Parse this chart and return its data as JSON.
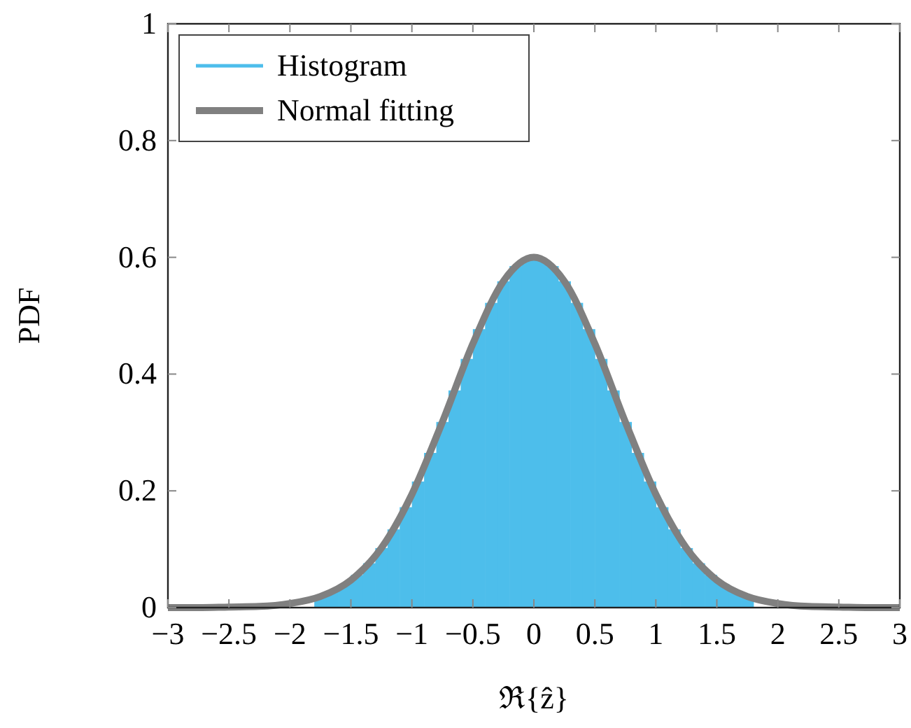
{
  "chart_data": {
    "type": "histogram",
    "xlabel": "ℜ{ẑ}",
    "ylabel": "PDF",
    "xlim": [
      -3,
      3
    ],
    "ylim": [
      0,
      1
    ],
    "xticks": [
      {
        "value": -3,
        "label": "−3"
      },
      {
        "value": -2.5,
        "label": "−2.5"
      },
      {
        "value": -2,
        "label": "−2"
      },
      {
        "value": -1.5,
        "label": "−1.5"
      },
      {
        "value": -1,
        "label": "−1"
      },
      {
        "value": -0.5,
        "label": "−0.5"
      },
      0,
      0.5,
      1,
      1.5,
      2,
      2.5,
      3
    ],
    "yticks": [
      0,
      0.2,
      0.4,
      0.6,
      0.8,
      1
    ],
    "grid": false,
    "legend": "top left",
    "series": [
      {
        "name": "Histogram",
        "color": "#4dbeeb",
        "bins": [
          -1.8,
          -1.7,
          -1.6,
          -1.5,
          -1.4,
          -1.3,
          -1.2,
          -1.1,
          -1,
          -0.9,
          -0.8,
          -0.7,
          -0.6,
          -0.5,
          -0.4,
          -0.3,
          -0.2,
          -0.1,
          0,
          0.1,
          0.2,
          0.3,
          0.4,
          0.5,
          0.6,
          0.7,
          0.8,
          0.9,
          1,
          1.1,
          1.2,
          1.3,
          1.4,
          1.5,
          1.6,
          1.7,
          1.8
        ],
        "values": [
          0.019,
          0.028,
          0.04,
          0.056,
          0.076,
          0.102,
          0.134,
          0.172,
          0.216,
          0.265,
          0.318,
          0.372,
          0.426,
          0.477,
          0.522,
          0.559,
          0.585,
          0.598,
          0.598,
          0.585,
          0.559,
          0.522,
          0.477,
          0.426,
          0.372,
          0.318,
          0.265,
          0.216,
          0.172,
          0.134,
          0.102,
          0.076,
          0.056,
          0.04,
          0.028,
          0.019
        ]
      },
      {
        "name": "Normal fitting",
        "type": "line",
        "color": "#808080",
        "x": [
          -3,
          -2.75,
          -2.5,
          -2.25,
          -2,
          -1.75,
          -1.5,
          -1.25,
          -1,
          -0.75,
          -0.5,
          -0.25,
          0,
          0.25,
          0.5,
          0.75,
          1,
          1.25,
          1.5,
          1.75,
          2,
          2.25,
          2.5,
          2.75,
          3
        ],
        "values": [
          0,
          0,
          0.001,
          0.002,
          0.007,
          0.019,
          0.047,
          0.102,
          0.194,
          0.318,
          0.452,
          0.559,
          0.6,
          0.559,
          0.452,
          0.318,
          0.194,
          0.102,
          0.047,
          0.019,
          0.007,
          0.002,
          0.001,
          0,
          0
        ]
      }
    ]
  }
}
